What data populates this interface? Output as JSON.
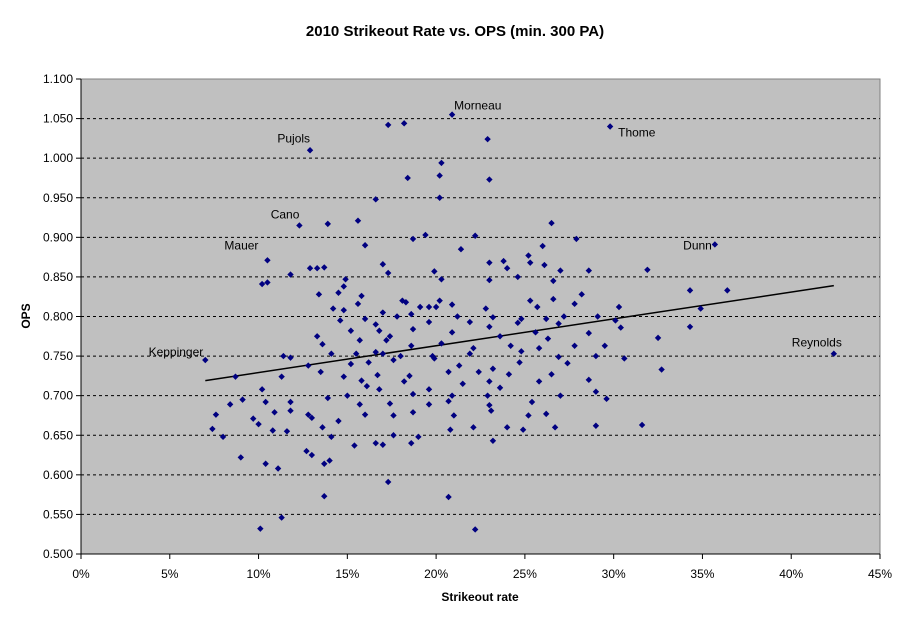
{
  "chart_data": {
    "type": "scatter",
    "title": "2010 Strikeout Rate vs. OPS (min. 300 PA)",
    "xlabel": "Strikeout rate",
    "ylabel": "OPS",
    "xlim": [
      0,
      0.45
    ],
    "ylim": [
      0.5,
      1.1
    ],
    "x_ticks": [
      0,
      0.05,
      0.1,
      0.15,
      0.2,
      0.25,
      0.3,
      0.35,
      0.4,
      0.45
    ],
    "x_tick_labels": [
      "0%",
      "5%",
      "10%",
      "15%",
      "20%",
      "25%",
      "30%",
      "35%",
      "40%",
      "45%"
    ],
    "y_ticks": [
      0.5,
      0.55,
      0.6,
      0.65,
      0.7,
      0.75,
      0.8,
      0.85,
      0.9,
      0.95,
      1.0,
      1.05,
      1.1
    ],
    "y_tick_labels": [
      "0.500",
      "0.550",
      "0.600",
      "0.650",
      "0.700",
      "0.750",
      "0.800",
      "0.850",
      "0.900",
      "0.950",
      "1.000",
      "1.050",
      "1.100"
    ],
    "grid": "horizontal dashed",
    "colors": {
      "plot_bg": "#c0c0c0",
      "marker": "#000080",
      "trendline": "#000000",
      "gridline": "#000000"
    },
    "trendline": {
      "x": [
        0.07,
        0.424
      ],
      "y": [
        0.719,
        0.839
      ]
    },
    "annotations": [
      {
        "text": "Morneau",
        "x": 0.209,
        "y": 1.055
      },
      {
        "text": "Pujols",
        "x": 0.129,
        "y": 1.01
      },
      {
        "text": "Thome",
        "x": 0.298,
        "y": 1.04
      },
      {
        "text": "Cano",
        "x": 0.123,
        "y": 0.915
      },
      {
        "text": "Dunn",
        "x": 0.357,
        "y": 0.891
      },
      {
        "text": "Mauer",
        "x": 0.105,
        "y": 0.871
      },
      {
        "text": "Keppinger",
        "x": 0.07,
        "y": 0.745
      },
      {
        "text": "Reynolds",
        "x": 0.424,
        "y": 0.753
      }
    ],
    "points": [
      [
        0.209,
        1.055
      ],
      [
        0.129,
        1.01
      ],
      [
        0.298,
        1.04
      ],
      [
        0.123,
        0.915
      ],
      [
        0.357,
        0.891
      ],
      [
        0.105,
        0.871
      ],
      [
        0.07,
        0.745
      ],
      [
        0.424,
        0.753
      ],
      [
        0.173,
        1.042
      ],
      [
        0.182,
        1.044
      ],
      [
        0.229,
        1.024
      ],
      [
        0.203,
        0.994
      ],
      [
        0.202,
        0.978
      ],
      [
        0.184,
        0.975
      ],
      [
        0.23,
        0.973
      ],
      [
        0.202,
        0.95
      ],
      [
        0.166,
        0.948
      ],
      [
        0.156,
        0.921
      ],
      [
        0.139,
        0.917
      ],
      [
        0.265,
        0.918
      ],
      [
        0.194,
        0.903
      ],
      [
        0.222,
        0.902
      ],
      [
        0.187,
        0.898
      ],
      [
        0.279,
        0.898
      ],
      [
        0.16,
        0.89
      ],
      [
        0.214,
        0.885
      ],
      [
        0.26,
        0.889
      ],
      [
        0.238,
        0.87
      ],
      [
        0.23,
        0.868
      ],
      [
        0.253,
        0.868
      ],
      [
        0.261,
        0.865
      ],
      [
        0.17,
        0.866
      ],
      [
        0.252,
        0.877
      ],
      [
        0.133,
        0.861
      ],
      [
        0.129,
        0.861
      ],
      [
        0.137,
        0.862
      ],
      [
        0.173,
        0.855
      ],
      [
        0.199,
        0.857
      ],
      [
        0.24,
        0.861
      ],
      [
        0.27,
        0.858
      ],
      [
        0.286,
        0.858
      ],
      [
        0.319,
        0.859
      ],
      [
        0.118,
        0.853
      ],
      [
        0.102,
        0.841
      ],
      [
        0.105,
        0.843
      ],
      [
        0.149,
        0.847
      ],
      [
        0.148,
        0.838
      ],
      [
        0.203,
        0.847
      ],
      [
        0.23,
        0.846
      ],
      [
        0.266,
        0.845
      ],
      [
        0.246,
        0.85
      ],
      [
        0.343,
        0.833
      ],
      [
        0.364,
        0.833
      ],
      [
        0.134,
        0.828
      ],
      [
        0.145,
        0.83
      ],
      [
        0.158,
        0.826
      ],
      [
        0.181,
        0.82
      ],
      [
        0.183,
        0.818
      ],
      [
        0.202,
        0.82
      ],
      [
        0.253,
        0.82
      ],
      [
        0.282,
        0.828
      ],
      [
        0.278,
        0.816
      ],
      [
        0.266,
        0.822
      ],
      [
        0.2,
        0.812
      ],
      [
        0.209,
        0.815
      ],
      [
        0.156,
        0.816
      ],
      [
        0.142,
        0.81
      ],
      [
        0.148,
        0.808
      ],
      [
        0.16,
        0.797
      ],
      [
        0.17,
        0.805
      ],
      [
        0.191,
        0.812
      ],
      [
        0.196,
        0.812
      ],
      [
        0.228,
        0.81
      ],
      [
        0.257,
        0.812
      ],
      [
        0.303,
        0.812
      ],
      [
        0.349,
        0.81
      ],
      [
        0.178,
        0.8
      ],
      [
        0.186,
        0.803
      ],
      [
        0.212,
        0.8
      ],
      [
        0.232,
        0.799
      ],
      [
        0.248,
        0.797
      ],
      [
        0.262,
        0.797
      ],
      [
        0.272,
        0.8
      ],
      [
        0.291,
        0.8
      ],
      [
        0.301,
        0.795
      ],
      [
        0.343,
        0.787
      ],
      [
        0.146,
        0.795
      ],
      [
        0.166,
        0.79
      ],
      [
        0.196,
        0.793
      ],
      [
        0.219,
        0.793
      ],
      [
        0.23,
        0.787
      ],
      [
        0.246,
        0.792
      ],
      [
        0.269,
        0.791
      ],
      [
        0.304,
        0.786
      ],
      [
        0.133,
        0.775
      ],
      [
        0.152,
        0.782
      ],
      [
        0.168,
        0.782
      ],
      [
        0.174,
        0.775
      ],
      [
        0.187,
        0.784
      ],
      [
        0.209,
        0.78
      ],
      [
        0.236,
        0.775
      ],
      [
        0.256,
        0.78
      ],
      [
        0.263,
        0.772
      ],
      [
        0.286,
        0.779
      ],
      [
        0.325,
        0.773
      ],
      [
        0.136,
        0.765
      ],
      [
        0.157,
        0.77
      ],
      [
        0.172,
        0.77
      ],
      [
        0.186,
        0.763
      ],
      [
        0.203,
        0.766
      ],
      [
        0.221,
        0.76
      ],
      [
        0.242,
        0.763
      ],
      [
        0.258,
        0.76
      ],
      [
        0.278,
        0.763
      ],
      [
        0.295,
        0.763
      ],
      [
        0.141,
        0.753
      ],
      [
        0.155,
        0.753
      ],
      [
        0.166,
        0.755
      ],
      [
        0.17,
        0.753
      ],
      [
        0.18,
        0.75
      ],
      [
        0.198,
        0.75
      ],
      [
        0.219,
        0.753
      ],
      [
        0.248,
        0.756
      ],
      [
        0.269,
        0.749
      ],
      [
        0.29,
        0.75
      ],
      [
        0.306,
        0.747
      ],
      [
        0.114,
        0.75
      ],
      [
        0.118,
        0.748
      ],
      [
        0.128,
        0.738
      ],
      [
        0.152,
        0.74
      ],
      [
        0.162,
        0.742
      ],
      [
        0.176,
        0.745
      ],
      [
        0.199,
        0.747
      ],
      [
        0.213,
        0.738
      ],
      [
        0.232,
        0.734
      ],
      [
        0.247,
        0.742
      ],
      [
        0.274,
        0.741
      ],
      [
        0.113,
        0.724
      ],
      [
        0.087,
        0.724
      ],
      [
        0.135,
        0.73
      ],
      [
        0.148,
        0.724
      ],
      [
        0.167,
        0.726
      ],
      [
        0.185,
        0.725
      ],
      [
        0.207,
        0.73
      ],
      [
        0.224,
        0.73
      ],
      [
        0.241,
        0.727
      ],
      [
        0.265,
        0.727
      ],
      [
        0.327,
        0.733
      ],
      [
        0.102,
        0.708
      ],
      [
        0.158,
        0.719
      ],
      [
        0.161,
        0.712
      ],
      [
        0.182,
        0.718
      ],
      [
        0.196,
        0.708
      ],
      [
        0.215,
        0.715
      ],
      [
        0.23,
        0.718
      ],
      [
        0.258,
        0.718
      ],
      [
        0.286,
        0.72
      ],
      [
        0.15,
        0.7
      ],
      [
        0.168,
        0.708
      ],
      [
        0.187,
        0.702
      ],
      [
        0.209,
        0.7
      ],
      [
        0.229,
        0.7
      ],
      [
        0.236,
        0.71
      ],
      [
        0.27,
        0.7
      ],
      [
        0.29,
        0.705
      ],
      [
        0.084,
        0.689
      ],
      [
        0.091,
        0.695
      ],
      [
        0.104,
        0.692
      ],
      [
        0.118,
        0.692
      ],
      [
        0.139,
        0.697
      ],
      [
        0.157,
        0.689
      ],
      [
        0.174,
        0.69
      ],
      [
        0.196,
        0.689
      ],
      [
        0.207,
        0.693
      ],
      [
        0.23,
        0.688
      ],
      [
        0.254,
        0.692
      ],
      [
        0.296,
        0.696
      ],
      [
        0.076,
        0.676
      ],
      [
        0.097,
        0.671
      ],
      [
        0.109,
        0.679
      ],
      [
        0.118,
        0.681
      ],
      [
        0.128,
        0.676
      ],
      [
        0.145,
        0.668
      ],
      [
        0.16,
        0.676
      ],
      [
        0.176,
        0.675
      ],
      [
        0.187,
        0.679
      ],
      [
        0.21,
        0.675
      ],
      [
        0.231,
        0.681
      ],
      [
        0.252,
        0.675
      ],
      [
        0.262,
        0.677
      ],
      [
        0.316,
        0.663
      ],
      [
        0.074,
        0.658
      ],
      [
        0.08,
        0.648
      ],
      [
        0.1,
        0.664
      ],
      [
        0.108,
        0.656
      ],
      [
        0.116,
        0.655
      ],
      [
        0.13,
        0.672
      ],
      [
        0.136,
        0.66
      ],
      [
        0.141,
        0.648
      ],
      [
        0.166,
        0.64
      ],
      [
        0.176,
        0.65
      ],
      [
        0.19,
        0.648
      ],
      [
        0.208,
        0.657
      ],
      [
        0.221,
        0.66
      ],
      [
        0.24,
        0.66
      ],
      [
        0.249,
        0.657
      ],
      [
        0.267,
        0.66
      ],
      [
        0.29,
        0.662
      ],
      [
        0.127,
        0.63
      ],
      [
        0.13,
        0.625
      ],
      [
        0.14,
        0.618
      ],
      [
        0.154,
        0.637
      ],
      [
        0.17,
        0.638
      ],
      [
        0.186,
        0.64
      ],
      [
        0.232,
        0.643
      ],
      [
        0.09,
        0.622
      ],
      [
        0.104,
        0.614
      ],
      [
        0.111,
        0.608
      ],
      [
        0.137,
        0.614
      ],
      [
        0.173,
        0.591
      ],
      [
        0.137,
        0.573
      ],
      [
        0.207,
        0.572
      ],
      [
        0.113,
        0.546
      ],
      [
        0.101,
        0.532
      ],
      [
        0.222,
        0.531
      ]
    ]
  }
}
